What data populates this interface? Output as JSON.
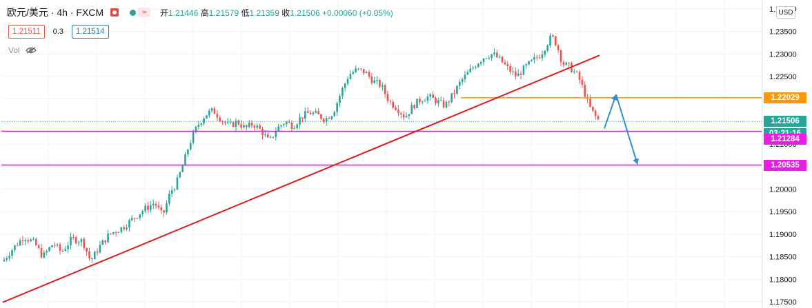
{
  "header": {
    "symbol": "欧元/美元 · 4h · FXCM",
    "open_label": "开",
    "open": "1.21446",
    "high_label": "高",
    "high": "1.21579",
    "low_label": "低",
    "low": "1.21359",
    "close_label": "收",
    "close": "1.21506",
    "change": "+0.00060 (+0.05%)"
  },
  "quote": {
    "bid": "1.21511",
    "spread": "0.3",
    "ask": "1.21514"
  },
  "vol_label": "Vol",
  "currency": "USD",
  "colors": {
    "up": "#26a69a",
    "down": "#ef5350",
    "trend": "#e01a1a",
    "support": "#e91ee6",
    "resistance": "#ff9800",
    "arrow": "#2f8fd0"
  },
  "chart_data": {
    "type": "candlestick",
    "ylim": [
      1.175,
      1.24
    ],
    "y_ticks": [
      "1.17500",
      "1.18000",
      "1.18500",
      "1.19000",
      "1.19500",
      "1.20000",
      "1.20500",
      "1.21000",
      "1.21500",
      "1.22000",
      "1.22500",
      "1.23000",
      "1.23500",
      "1.24000"
    ],
    "anchors": [
      [
        0,
        1.184
      ],
      [
        8,
        1.187
      ],
      [
        16,
        1.1895
      ],
      [
        24,
        1.188
      ],
      [
        30,
        1.185
      ],
      [
        38,
        1.188
      ],
      [
        44,
        1.186
      ],
      [
        52,
        1.189
      ],
      [
        60,
        1.1885
      ],
      [
        66,
        1.184
      ],
      [
        72,
        1.187
      ],
      [
        80,
        1.19
      ],
      [
        90,
        1.1915
      ],
      [
        98,
        1.1935
      ],
      [
        106,
        1.1955
      ],
      [
        114,
        1.197
      ],
      [
        120,
        1.194
      ],
      [
        126,
        1.1995
      ],
      [
        130,
        1.201
      ],
      [
        136,
        1.206
      ],
      [
        140,
        1.21
      ],
      [
        146,
        1.214
      ],
      [
        152,
        1.2165
      ],
      [
        158,
        1.2175
      ],
      [
        164,
        1.2155
      ],
      [
        170,
        1.214
      ],
      [
        176,
        1.215
      ],
      [
        182,
        1.2135
      ],
      [
        188,
        1.2145
      ],
      [
        194,
        1.213
      ],
      [
        200,
        1.2105
      ],
      [
        206,
        1.2135
      ],
      [
        212,
        1.215
      ],
      [
        218,
        1.214
      ],
      [
        224,
        1.216
      ],
      [
        230,
        1.217
      ],
      [
        236,
        1.2165
      ],
      [
        242,
        1.2155
      ],
      [
        248,
        1.217
      ],
      [
        254,
        1.2215
      ],
      [
        260,
        1.2255
      ],
      [
        266,
        1.2265
      ],
      [
        272,
        1.226
      ],
      [
        278,
        1.224
      ],
      [
        284,
        1.223
      ],
      [
        290,
        1.2195
      ],
      [
        296,
        1.218
      ],
      [
        302,
        1.216
      ],
      [
        308,
        1.2185
      ],
      [
        314,
        1.22
      ],
      [
        320,
        1.2205
      ],
      [
        326,
        1.2195
      ],
      [
        332,
        1.2185
      ],
      [
        338,
        1.221
      ],
      [
        344,
        1.224
      ],
      [
        350,
        1.226
      ],
      [
        356,
        1.228
      ],
      [
        362,
        1.2295
      ],
      [
        368,
        1.23
      ],
      [
        374,
        1.2285
      ],
      [
        380,
        1.2265
      ],
      [
        386,
        1.225
      ],
      [
        392,
        1.227
      ],
      [
        398,
        1.2285
      ],
      [
        404,
        1.23
      ],
      [
        408,
        1.232
      ],
      [
        412,
        1.234
      ],
      [
        416,
        1.232
      ],
      [
        420,
        1.228
      ],
      [
        426,
        1.227
      ],
      [
        432,
        1.225
      ],
      [
        436,
        1.222
      ],
      [
        440,
        1.2185
      ],
      [
        444,
        1.2165
      ],
      [
        448,
        1.215
      ]
    ],
    "horizontal_levels": [
      {
        "value": 1.22029,
        "label": "1.22029",
        "color": "orange"
      },
      {
        "value": 1.21284,
        "label": "1.21284",
        "color": "magenta"
      },
      {
        "value": 1.20535,
        "label": "1.20535",
        "color": "magenta"
      }
    ],
    "last_price": {
      "value": 1.21506,
      "label": "1.21506",
      "countdown": "03:21:16"
    },
    "trendline": {
      "from": [
        1.1749
      ],
      "to": [
        1.2297
      ]
    },
    "arrows": [
      {
        "from": 1.2135,
        "to": 1.221
      },
      {
        "from": 1.221,
        "to": 1.2055
      }
    ]
  }
}
